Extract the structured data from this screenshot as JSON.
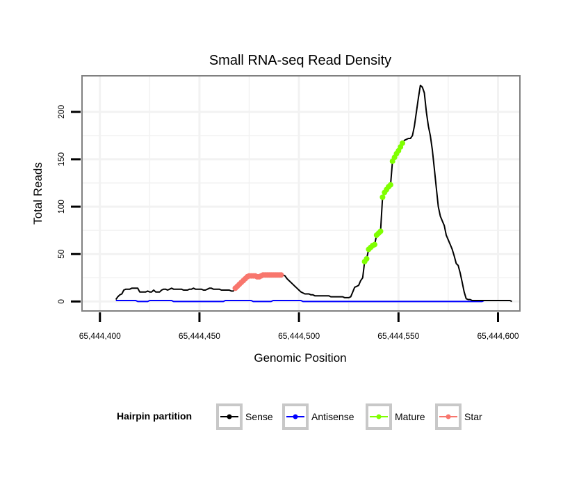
{
  "chart_data": {
    "type": "line",
    "title": "Small RNA-seq Read Density",
    "xlabel": "Genomic Position",
    "ylabel": "Total Reads",
    "xlim": [
      65444391,
      65444611
    ],
    "ylim": [
      -10,
      238
    ],
    "x_ticks": [
      65444400,
      65444450,
      65444500,
      65444550,
      65444600
    ],
    "x_tick_labels": [
      "65,444,400",
      "65,444,450",
      "65,444,500",
      "65,444,550",
      "65,444,600"
    ],
    "y_ticks": [
      0,
      50,
      100,
      150,
      200
    ],
    "y_tick_labels": [
      "0",
      "50",
      "100",
      "150",
      "200"
    ],
    "grid": true,
    "legend_title": "Hairpin partition",
    "legend_position": "bottom",
    "colors": {
      "Sense": "#000000",
      "Antisense": "#0000ff",
      "Mature": "#7fff00",
      "Star": "#f8766d",
      "panel_border": "#808080",
      "grid": "#f2f2f2"
    },
    "series": [
      {
        "name": "Sense",
        "type": "line",
        "points": [
          [
            65444408,
            2
          ],
          [
            65444409,
            5
          ],
          [
            65444410,
            7
          ],
          [
            65444411,
            8
          ],
          [
            65444412,
            12
          ],
          [
            65444413,
            13
          ],
          [
            65444414,
            13
          ],
          [
            65444415,
            13
          ],
          [
            65444416,
            14
          ],
          [
            65444417,
            14
          ],
          [
            65444418,
            14
          ],
          [
            65444419,
            14
          ],
          [
            65444420,
            10
          ],
          [
            65444421,
            10
          ],
          [
            65444422,
            10
          ],
          [
            65444423,
            10
          ],
          [
            65444424,
            11
          ],
          [
            65444425,
            10
          ],
          [
            65444426,
            10
          ],
          [
            65444427,
            12
          ],
          [
            65444428,
            10
          ],
          [
            65444429,
            10
          ],
          [
            65444430,
            10
          ],
          [
            65444431,
            12
          ],
          [
            65444432,
            13
          ],
          [
            65444433,
            13
          ],
          [
            65444434,
            12
          ],
          [
            65444435,
            13
          ],
          [
            65444436,
            14
          ],
          [
            65444437,
            13
          ],
          [
            65444438,
            13
          ],
          [
            65444439,
            13
          ],
          [
            65444440,
            13
          ],
          [
            65444441,
            13
          ],
          [
            65444442,
            12
          ],
          [
            65444443,
            12
          ],
          [
            65444444,
            12
          ],
          [
            65444445,
            13
          ],
          [
            65444446,
            13
          ],
          [
            65444447,
            14
          ],
          [
            65444448,
            13
          ],
          [
            65444449,
            13
          ],
          [
            65444450,
            13
          ],
          [
            65444451,
            13
          ],
          [
            65444452,
            12
          ],
          [
            65444453,
            12
          ],
          [
            65444454,
            13
          ],
          [
            65444455,
            14
          ],
          [
            65444456,
            14
          ],
          [
            65444457,
            13
          ],
          [
            65444458,
            13
          ],
          [
            65444459,
            13
          ],
          [
            65444460,
            13
          ],
          [
            65444461,
            12
          ],
          [
            65444462,
            12
          ],
          [
            65444463,
            12
          ],
          [
            65444464,
            12
          ],
          [
            65444465,
            12
          ],
          [
            65444466,
            11
          ],
          [
            65444467,
            11
          ],
          [
            65444468,
            14
          ],
          [
            65444469,
            16
          ],
          [
            65444470,
            18
          ],
          [
            65444471,
            20
          ],
          [
            65444472,
            22
          ],
          [
            65444473,
            24
          ],
          [
            65444474,
            26
          ],
          [
            65444475,
            27
          ],
          [
            65444476,
            27
          ],
          [
            65444477,
            27
          ],
          [
            65444478,
            27
          ],
          [
            65444479,
            26
          ],
          [
            65444480,
            26
          ],
          [
            65444481,
            27
          ],
          [
            65444482,
            28
          ],
          [
            65444483,
            28
          ],
          [
            65444484,
            28
          ],
          [
            65444485,
            28
          ],
          [
            65444486,
            28
          ],
          [
            65444487,
            28
          ],
          [
            65444488,
            28
          ],
          [
            65444489,
            28
          ],
          [
            65444490,
            28
          ],
          [
            65444491,
            28
          ],
          [
            65444492,
            28
          ],
          [
            65444493,
            27
          ],
          [
            65444494,
            24
          ],
          [
            65444495,
            22
          ],
          [
            65444496,
            20
          ],
          [
            65444497,
            18
          ],
          [
            65444498,
            16
          ],
          [
            65444499,
            14
          ],
          [
            65444500,
            12
          ],
          [
            65444501,
            10
          ],
          [
            65444502,
            9
          ],
          [
            65444503,
            8
          ],
          [
            65444504,
            8
          ],
          [
            65444505,
            8
          ],
          [
            65444506,
            7
          ],
          [
            65444507,
            7
          ],
          [
            65444508,
            6
          ],
          [
            65444509,
            6
          ],
          [
            65444510,
            6
          ],
          [
            65444511,
            6
          ],
          [
            65444512,
            6
          ],
          [
            65444513,
            6
          ],
          [
            65444514,
            6
          ],
          [
            65444515,
            6
          ],
          [
            65444516,
            5
          ],
          [
            65444517,
            5
          ],
          [
            65444518,
            5
          ],
          [
            65444519,
            5
          ],
          [
            65444520,
            5
          ],
          [
            65444521,
            5
          ],
          [
            65444522,
            5
          ],
          [
            65444523,
            4
          ],
          [
            65444524,
            4
          ],
          [
            65444525,
            4
          ],
          [
            65444526,
            5
          ],
          [
            65444527,
            10
          ],
          [
            65444528,
            15
          ],
          [
            65444529,
            16
          ],
          [
            65444530,
            17
          ],
          [
            65444531,
            22
          ],
          [
            65444532,
            25
          ],
          [
            65444533,
            42
          ],
          [
            65444534,
            45
          ],
          [
            65444535,
            55
          ],
          [
            65444536,
            57
          ],
          [
            65444537,
            59
          ],
          [
            65444538,
            60
          ],
          [
            65444539,
            70
          ],
          [
            65444540,
            72
          ],
          [
            65444541,
            74
          ],
          [
            65444542,
            110
          ],
          [
            65444543,
            115
          ],
          [
            65444544,
            118
          ],
          [
            65444545,
            121
          ],
          [
            65444546,
            123
          ],
          [
            65444547,
            148
          ],
          [
            65444548,
            152
          ],
          [
            65444549,
            156
          ],
          [
            65444550,
            159
          ],
          [
            65444551,
            163
          ],
          [
            65444552,
            167
          ],
          [
            65444553,
            170
          ],
          [
            65444554,
            171
          ],
          [
            65444555,
            172
          ],
          [
            65444556,
            172
          ],
          [
            65444557,
            175
          ],
          [
            65444558,
            185
          ],
          [
            65444559,
            200
          ],
          [
            65444560,
            215
          ],
          [
            65444561,
            228
          ],
          [
            65444562,
            226
          ],
          [
            65444563,
            220
          ],
          [
            65444564,
            200
          ],
          [
            65444565,
            185
          ],
          [
            65444566,
            175
          ],
          [
            65444567,
            160
          ],
          [
            65444568,
            140
          ],
          [
            65444569,
            120
          ],
          [
            65444570,
            100
          ],
          [
            65444571,
            90
          ],
          [
            65444572,
            85
          ],
          [
            65444573,
            80
          ],
          [
            65444574,
            70
          ],
          [
            65444575,
            65
          ],
          [
            65444576,
            60
          ],
          [
            65444577,
            55
          ],
          [
            65444578,
            48
          ],
          [
            65444579,
            40
          ],
          [
            65444580,
            38
          ],
          [
            65444581,
            30
          ],
          [
            65444582,
            20
          ],
          [
            65444583,
            10
          ],
          [
            65444584,
            3
          ],
          [
            65444585,
            2
          ],
          [
            65444586,
            2
          ],
          [
            65444587,
            1
          ],
          [
            65444588,
            1
          ],
          [
            65444589,
            1
          ],
          [
            65444590,
            1
          ],
          [
            65444591,
            1
          ],
          [
            65444592,
            1
          ],
          [
            65444593,
            1
          ],
          [
            65444594,
            1
          ],
          [
            65444595,
            1
          ],
          [
            65444596,
            1
          ],
          [
            65444597,
            1
          ],
          [
            65444598,
            1
          ],
          [
            65444599,
            1
          ],
          [
            65444600,
            1
          ],
          [
            65444601,
            1
          ],
          [
            65444602,
            1
          ],
          [
            65444603,
            1
          ],
          [
            65444604,
            1
          ],
          [
            65444605,
            1
          ],
          [
            65444606,
            1
          ],
          [
            65444607,
            0
          ]
        ]
      },
      {
        "name": "Antisense",
        "type": "line",
        "points": [
          [
            65444408,
            1
          ],
          [
            65444417,
            1
          ],
          [
            65444418,
            1
          ],
          [
            65444419,
            0
          ],
          [
            65444424,
            0
          ],
          [
            65444425,
            1
          ],
          [
            65444436,
            1
          ],
          [
            65444437,
            0
          ],
          [
            65444462,
            0
          ],
          [
            65444463,
            1
          ],
          [
            65444476,
            1
          ],
          [
            65444477,
            0
          ],
          [
            65444486,
            0
          ],
          [
            65444487,
            1
          ],
          [
            65444501,
            1
          ],
          [
            65444502,
            0
          ],
          [
            65444592,
            0
          ],
          [
            65444593,
            1
          ],
          [
            65444600,
            1
          ]
        ]
      },
      {
        "name": "Mature",
        "type": "points",
        "points": [
          [
            65444533,
            42
          ],
          [
            65444534,
            45
          ],
          [
            65444535,
            55
          ],
          [
            65444536,
            57
          ],
          [
            65444537,
            59
          ],
          [
            65444538,
            60
          ],
          [
            65444539,
            70
          ],
          [
            65444540,
            72
          ],
          [
            65444541,
            74
          ],
          [
            65444542,
            110
          ],
          [
            65444543,
            115
          ],
          [
            65444544,
            118
          ],
          [
            65444545,
            121
          ],
          [
            65444546,
            123
          ],
          [
            65444547,
            148
          ],
          [
            65444548,
            152
          ],
          [
            65444549,
            156
          ],
          [
            65444550,
            159
          ],
          [
            65444551,
            163
          ],
          [
            65444552,
            167
          ]
        ]
      },
      {
        "name": "Star",
        "type": "points",
        "points": [
          [
            65444468,
            14
          ],
          [
            65444469,
            16
          ],
          [
            65444470,
            18
          ],
          [
            65444471,
            20
          ],
          [
            65444472,
            22
          ],
          [
            65444473,
            24
          ],
          [
            65444474,
            26
          ],
          [
            65444475,
            27
          ],
          [
            65444476,
            27
          ],
          [
            65444477,
            27
          ],
          [
            65444478,
            27
          ],
          [
            65444479,
            26
          ],
          [
            65444480,
            26
          ],
          [
            65444481,
            27
          ],
          [
            65444482,
            28
          ],
          [
            65444483,
            28
          ],
          [
            65444484,
            28
          ],
          [
            65444485,
            28
          ],
          [
            65444486,
            28
          ],
          [
            65444487,
            28
          ],
          [
            65444488,
            28
          ],
          [
            65444489,
            28
          ],
          [
            65444490,
            28
          ],
          [
            65444491,
            28
          ]
        ]
      }
    ]
  }
}
